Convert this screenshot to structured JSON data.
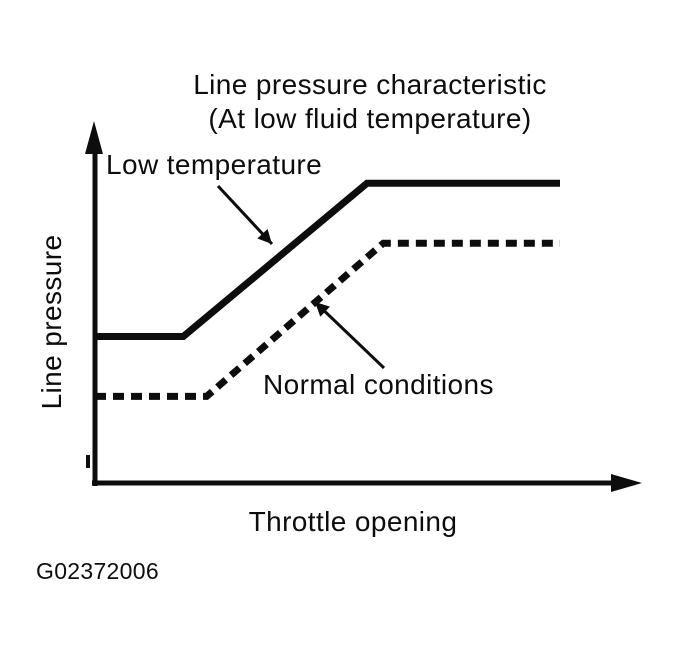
{
  "figure_id": "G02372006",
  "chart_data": {
    "type": "line",
    "title": "Line pressure characteristic",
    "subtitle": "(At low fluid temperature)",
    "xlabel": "Throttle opening",
    "ylabel": "Line pressure",
    "ink_color": "#0d0d0d",
    "background_color": "#ffffff",
    "grid": false,
    "legend_position": "inline-annotations",
    "axes": {
      "x": {
        "quantitative": false,
        "arrowhead": true,
        "range": [
          0,
          1
        ]
      },
      "y": {
        "quantitative": false,
        "arrowhead": true,
        "range": [
          0,
          1
        ]
      }
    },
    "series": [
      {
        "name": "Low temperature",
        "line_style": "solid",
        "x": [
          0,
          0.19,
          0.585,
          1.0
        ],
        "y": [
          0.44,
          0.44,
          0.9,
          0.9
        ]
      },
      {
        "name": "Normal conditions",
        "line_style": "dashed",
        "x": [
          0,
          0.24,
          0.62,
          1.0
        ],
        "y": [
          0.26,
          0.26,
          0.72,
          0.72
        ]
      }
    ]
  }
}
